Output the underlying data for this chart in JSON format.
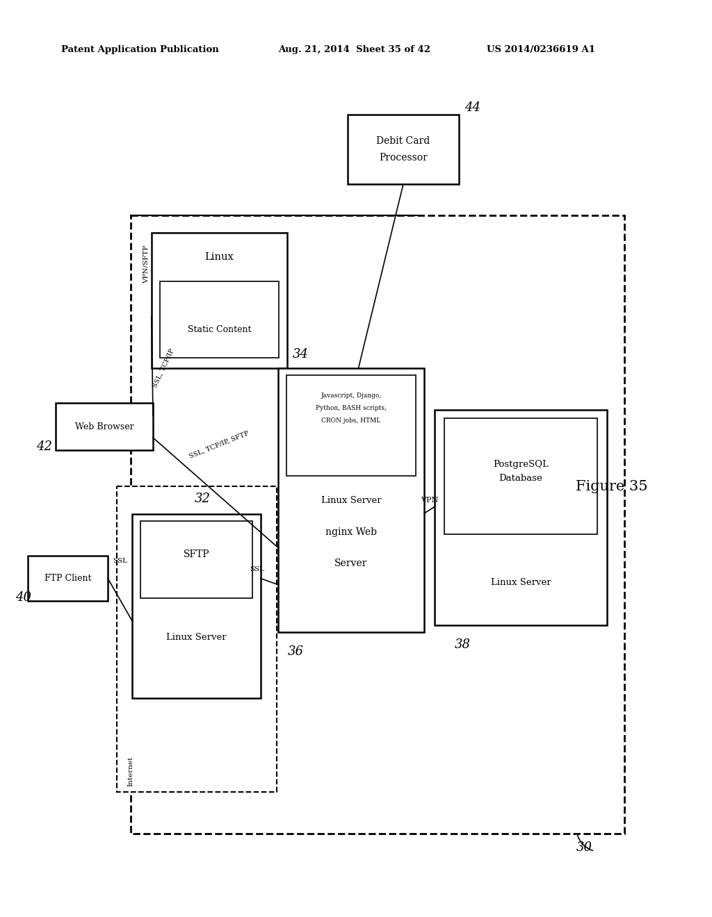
{
  "header_left": "Patent Application Publication",
  "header_mid": "Aug. 21, 2014  Sheet 35 of 42",
  "header_right": "US 2014/0236619 A1",
  "figure_label": "Figure 35",
  "bg_color": "#ffffff"
}
